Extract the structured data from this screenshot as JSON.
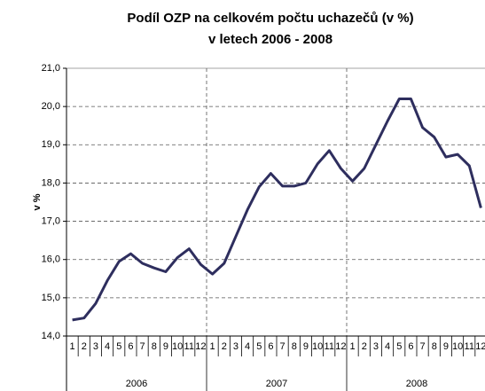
{
  "chart_data": {
    "type": "line",
    "title": [
      "Podíl OZP na celkovém počtu uchazečů (v %)",
      "v letech 2006 - 2008"
    ],
    "ylabel": "v %",
    "categories": [
      "1",
      "2",
      "3",
      "4",
      "5",
      "6",
      "7",
      "8",
      "9",
      "10",
      "11",
      "12",
      "1",
      "2",
      "3",
      "4",
      "5",
      "6",
      "7",
      "8",
      "9",
      "10",
      "11",
      "12",
      "1",
      "2",
      "3",
      "4",
      "5",
      "6",
      "7",
      "8",
      "9",
      "10",
      "11",
      "12"
    ],
    "groups": [
      "2006",
      "2007",
      "2008"
    ],
    "values": [
      14.42,
      14.47,
      14.85,
      15.45,
      15.95,
      16.15,
      15.9,
      15.78,
      15.68,
      16.05,
      16.28,
      15.87,
      15.62,
      15.9,
      16.6,
      17.3,
      17.9,
      18.25,
      17.92,
      17.92,
      18.0,
      18.5,
      18.85,
      18.38,
      18.05,
      18.38,
      19.0,
      19.62,
      20.2,
      20.2,
      19.45,
      19.2,
      18.68,
      18.75,
      18.45,
      17.35
    ],
    "color": "#2e2e5e",
    "ylim": [
      14,
      21
    ],
    "yticks": [
      {
        "value": 14,
        "label": "14,0"
      },
      {
        "value": 15,
        "label": "15,0"
      },
      {
        "value": 16,
        "label": "16,0"
      },
      {
        "value": 17,
        "label": "17,0"
      },
      {
        "value": 18,
        "label": "18,0"
      },
      {
        "value": 19,
        "label": "19,0"
      },
      {
        "value": 20,
        "label": "20,0"
      },
      {
        "value": 21,
        "label": "21,0"
      }
    ],
    "grid": true
  }
}
